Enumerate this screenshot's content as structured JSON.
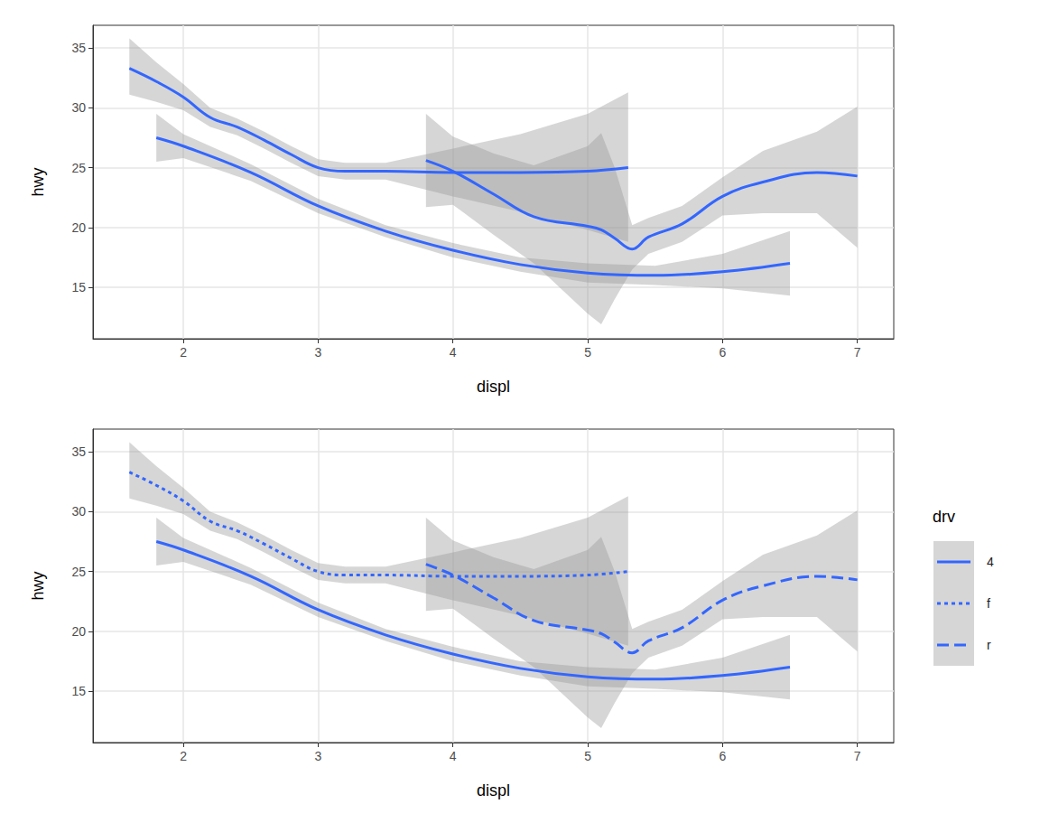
{
  "chart_data": [
    {
      "type": "line",
      "x_label": "displ",
      "y_label": "hwy",
      "xlim": [
        1.33,
        7.27
      ],
      "ylim": [
        10.7,
        36.9
      ],
      "xticks": [
        2,
        3,
        4,
        5,
        6,
        7
      ],
      "yticks": [
        15,
        20,
        25,
        30,
        35
      ],
      "grid": true,
      "series": [
        {
          "color": "#3366FF",
          "line_style": "solid",
          "x": [
            1.8,
            2,
            2.5,
            3,
            3.5,
            4,
            4.5,
            5,
            5.5,
            6,
            6.5
          ],
          "values": [
            27.5,
            26.8,
            24.6,
            21.8,
            19.7,
            18.1,
            16.9,
            16.2,
            16.0,
            16.3,
            17.0
          ],
          "lower": [
            25.5,
            25.8,
            23.9,
            21.2,
            19.2,
            17.5,
            16.3,
            15.4,
            15.2,
            14.9,
            14.3
          ],
          "upper": [
            29.5,
            27.8,
            25.3,
            22.4,
            20.2,
            18.7,
            17.5,
            17.0,
            16.8,
            17.8,
            19.7
          ]
        },
        {
          "color": "#3366FF",
          "line_style": "solid",
          "x": [
            1.6,
            1.8,
            2,
            2.2,
            2.4,
            2.6,
            2.8,
            3,
            3.2,
            3.5,
            4,
            4.5,
            5,
            5.3
          ],
          "values": [
            33.3,
            32.2,
            30.9,
            29.2,
            28.4,
            27.3,
            26.1,
            25.0,
            24.7,
            24.7,
            24.6,
            24.6,
            24.7,
            25.0
          ],
          "lower": [
            31.1,
            30.5,
            29.8,
            28.4,
            27.7,
            26.6,
            25.4,
            24.3,
            24.0,
            24.0,
            22.6,
            21.3,
            19.8,
            18.8
          ],
          "upper": [
            35.8,
            33.8,
            32.0,
            30.0,
            29.1,
            28.0,
            26.8,
            25.7,
            25.4,
            25.4,
            26.6,
            27.8,
            29.5,
            31.3
          ]
        },
        {
          "color": "#3366FF",
          "line_style": "solid",
          "x": [
            3.8,
            4,
            4.3,
            4.6,
            5,
            5.1,
            5.2,
            5.33,
            5.45,
            5.7,
            6,
            6.3,
            6.7,
            7
          ],
          "values": [
            25.6,
            24.7,
            22.8,
            20.9,
            20.1,
            19.8,
            19.1,
            18.2,
            19.2,
            20.3,
            22.6,
            23.8,
            24.6,
            24.3
          ],
          "lower": [
            21.7,
            21.9,
            19.4,
            17.0,
            12.8,
            11.9,
            14.0,
            16.5,
            17.8,
            18.8,
            21.0,
            21.2,
            21.2,
            18.3
          ],
          "upper": [
            29.5,
            27.6,
            26.2,
            25.2,
            26.8,
            27.9,
            25.0,
            20.2,
            20.8,
            21.8,
            24.2,
            26.4,
            28.0,
            30.1
          ]
        }
      ]
    },
    {
      "type": "line",
      "x_label": "displ",
      "y_label": "hwy",
      "xlim": [
        1.33,
        7.27
      ],
      "ylim": [
        10.7,
        36.9
      ],
      "xticks": [
        2,
        3,
        4,
        5,
        6,
        7
      ],
      "yticks": [
        15,
        20,
        25,
        30,
        35
      ],
      "grid": true,
      "legend": "right",
      "legend_title": "drv",
      "series": [
        {
          "name": "4",
          "color": "#3366FF",
          "line_style": "solid",
          "x": [
            1.8,
            2,
            2.5,
            3,
            3.5,
            4,
            4.5,
            5,
            5.5,
            6,
            6.5
          ],
          "values": [
            27.5,
            26.8,
            24.6,
            21.8,
            19.7,
            18.1,
            16.9,
            16.2,
            16.0,
            16.3,
            17.0
          ],
          "lower": [
            25.5,
            25.8,
            23.9,
            21.2,
            19.2,
            17.5,
            16.3,
            15.4,
            15.2,
            14.9,
            14.3
          ],
          "upper": [
            29.5,
            27.8,
            25.3,
            22.4,
            20.2,
            18.7,
            17.5,
            17.0,
            16.8,
            17.8,
            19.7
          ]
        },
        {
          "name": "f",
          "color": "#3366FF",
          "line_style": "dotted",
          "x": [
            1.6,
            1.8,
            2,
            2.2,
            2.4,
            2.6,
            2.8,
            3,
            3.2,
            3.5,
            4,
            4.5,
            5,
            5.3
          ],
          "values": [
            33.3,
            32.2,
            30.9,
            29.2,
            28.4,
            27.3,
            26.1,
            25.0,
            24.7,
            24.7,
            24.6,
            24.6,
            24.7,
            25.0
          ],
          "lower": [
            31.1,
            30.5,
            29.8,
            28.4,
            27.7,
            26.6,
            25.4,
            24.3,
            24.0,
            24.0,
            22.6,
            21.3,
            19.8,
            18.8
          ],
          "upper": [
            35.8,
            33.8,
            32.0,
            30.0,
            29.1,
            28.0,
            26.8,
            25.7,
            25.4,
            25.4,
            26.6,
            27.8,
            29.5,
            31.3
          ]
        },
        {
          "name": "r",
          "color": "#3366FF",
          "line_style": "dashed",
          "x": [
            3.8,
            4,
            4.3,
            4.6,
            5,
            5.1,
            5.2,
            5.33,
            5.45,
            5.7,
            6,
            6.3,
            6.7,
            7
          ],
          "values": [
            25.6,
            24.7,
            22.8,
            20.9,
            20.1,
            19.8,
            19.1,
            18.2,
            19.2,
            20.3,
            22.6,
            23.8,
            24.6,
            24.3
          ],
          "lower": [
            21.7,
            21.9,
            19.4,
            17.0,
            12.8,
            11.9,
            14.0,
            16.5,
            17.8,
            18.8,
            21.0,
            21.2,
            21.2,
            18.3
          ],
          "upper": [
            29.5,
            27.6,
            26.2,
            25.2,
            26.8,
            27.9,
            25.0,
            20.2,
            20.8,
            21.8,
            24.2,
            26.4,
            28.0,
            30.1
          ]
        }
      ]
    }
  ]
}
